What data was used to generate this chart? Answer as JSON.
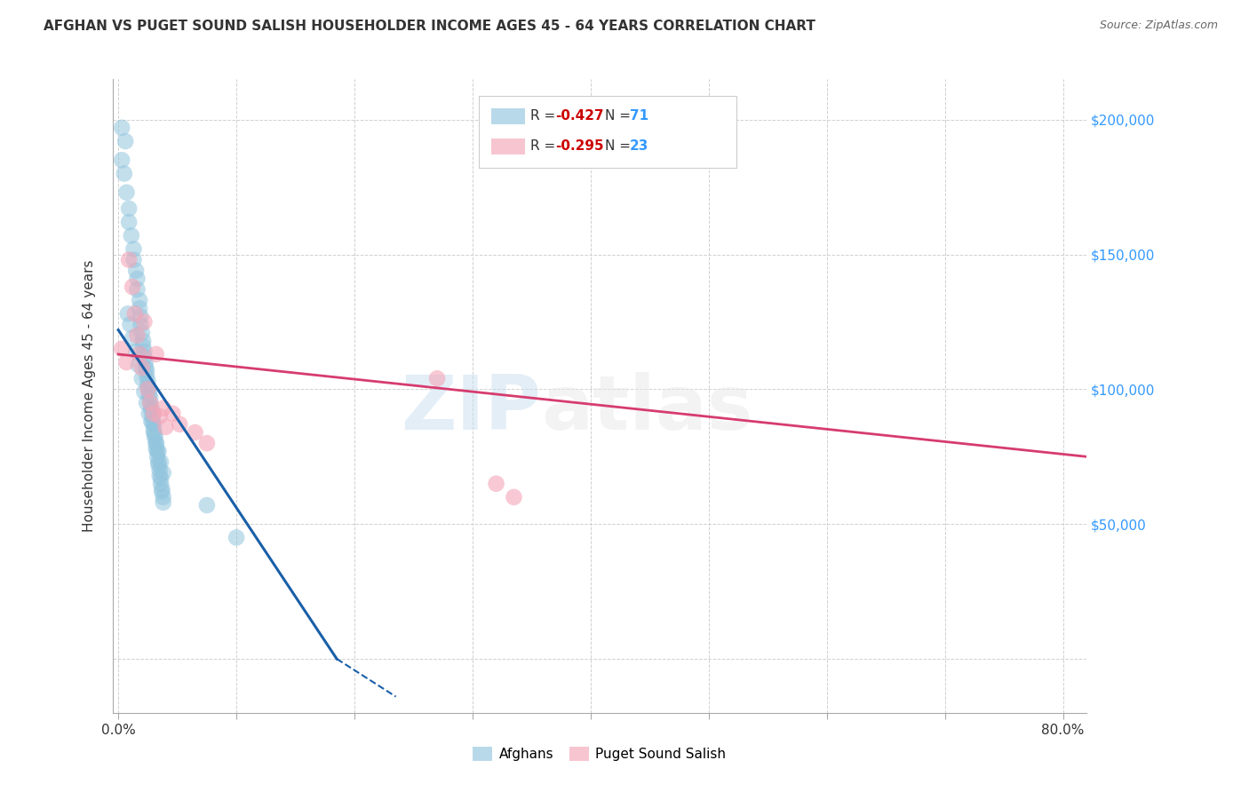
{
  "title": "AFGHAN VS PUGET SOUND SALISH HOUSEHOLDER INCOME AGES 45 - 64 YEARS CORRELATION CHART",
  "source": "Source: ZipAtlas.com",
  "ylabel": "Householder Income Ages 45 - 64 years",
  "x_start_label": "0.0%",
  "x_end_label": "80.0%",
  "ytick_vals": [
    0,
    50000,
    100000,
    150000,
    200000
  ],
  "ytick_labels_right": [
    "",
    "$50,000",
    "$100,000",
    "$150,000",
    "$200,000"
  ],
  "xlim": [
    -0.005,
    0.82
  ],
  "ylim": [
    -20000,
    215000
  ],
  "legend_r_afghan": "-0.427",
  "legend_n_afghan": "71",
  "legend_r_salish": "-0.295",
  "legend_n_salish": "23",
  "afghan_color": "#92c5de",
  "salish_color": "#f4a6b8",
  "afghan_line_color": "#1a5fa8",
  "salish_line_color": "#d63c6e",
  "watermark_color": "#c8dff0",
  "background_color": "#ffffff",
  "grid_color": "#d0d0d0",
  "afghans_x": [
    0.003,
    0.006,
    0.003,
    0.005,
    0.007,
    0.009,
    0.009,
    0.011,
    0.013,
    0.013,
    0.015,
    0.016,
    0.016,
    0.018,
    0.018,
    0.019,
    0.019,
    0.02,
    0.021,
    0.021,
    0.022,
    0.022,
    0.023,
    0.023,
    0.024,
    0.024,
    0.025,
    0.025,
    0.026,
    0.026,
    0.027,
    0.027,
    0.028,
    0.028,
    0.029,
    0.029,
    0.03,
    0.03,
    0.031,
    0.031,
    0.032,
    0.032,
    0.033,
    0.033,
    0.034,
    0.034,
    0.035,
    0.035,
    0.036,
    0.036,
    0.037,
    0.037,
    0.038,
    0.038,
    0.008,
    0.01,
    0.012,
    0.015,
    0.017,
    0.02,
    0.022,
    0.024,
    0.026,
    0.028,
    0.03,
    0.032,
    0.034,
    0.036,
    0.038,
    0.075,
    0.1
  ],
  "afghans_y": [
    197000,
    192000,
    185000,
    180000,
    173000,
    167000,
    162000,
    157000,
    152000,
    148000,
    144000,
    141000,
    137000,
    133000,
    130000,
    127000,
    124000,
    121000,
    118000,
    116000,
    114000,
    112000,
    110000,
    108000,
    107000,
    105000,
    103000,
    101000,
    100000,
    98000,
    97000,
    95000,
    93000,
    92000,
    90000,
    88000,
    87000,
    85000,
    83000,
    82000,
    80000,
    78000,
    77000,
    75000,
    73000,
    72000,
    70000,
    68000,
    67000,
    65000,
    63000,
    62000,
    60000,
    58000,
    128000,
    124000,
    119000,
    114000,
    109000,
    104000,
    99000,
    95000,
    91000,
    88000,
    84000,
    80000,
    77000,
    73000,
    69000,
    57000,
    45000
  ],
  "salish_x": [
    0.003,
    0.007,
    0.009,
    0.012,
    0.014,
    0.016,
    0.018,
    0.02,
    0.022,
    0.025,
    0.027,
    0.03,
    0.032,
    0.035,
    0.038,
    0.04,
    0.046,
    0.052,
    0.065,
    0.075,
    0.27,
    0.32,
    0.335
  ],
  "salish_y": [
    115000,
    110000,
    148000,
    138000,
    128000,
    120000,
    113000,
    108000,
    125000,
    100000,
    95000,
    91000,
    113000,
    90000,
    93000,
    86000,
    91000,
    87000,
    84000,
    80000,
    104000,
    65000,
    60000
  ],
  "afghan_trendline_x0": 0.0,
  "afghan_trendline_y0": 122000,
  "afghan_trendline_x1": 0.185,
  "afghan_trendline_y1": 0,
  "afghan_trendline_dash_x1": 0.235,
  "afghan_trendline_dash_y1": -14000,
  "salish_trendline_x0": 0.0,
  "salish_trendline_y0": 113000,
  "salish_trendline_x1": 0.82,
  "salish_trendline_y1": 75000,
  "x_tick_positions": [
    0.0,
    0.1,
    0.2,
    0.3,
    0.4,
    0.5,
    0.6,
    0.7,
    0.8
  ]
}
